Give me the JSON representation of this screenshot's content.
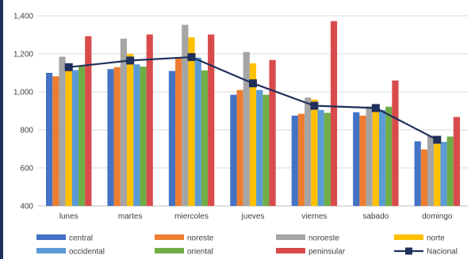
{
  "chart_data": {
    "type": "bar",
    "title": "",
    "xlabel": "",
    "ylabel": "",
    "ylim": [
      400,
      1400
    ],
    "yticks": [
      400,
      600,
      800,
      "1,000",
      "1,200",
      "1,400"
    ],
    "ytick_values": [
      400,
      600,
      800,
      1000,
      1200,
      1400
    ],
    "grid": true,
    "legend_position": "bottom",
    "categories": [
      "lunes",
      "martes",
      "miercoles",
      "jueves",
      "viernes",
      "sabado",
      "domingo"
    ],
    "series": [
      {
        "name": "central",
        "type": "bar",
        "color": "#4472c4",
        "values": [
          1100,
          1120,
          1110,
          985,
          875,
          893,
          740
        ]
      },
      {
        "name": "noreste",
        "type": "bar",
        "color": "#ed7d31",
        "values": [
          1082,
          1130,
          1180,
          1010,
          885,
          875,
          697
        ]
      },
      {
        "name": "noroeste",
        "type": "bar",
        "color": "#a5a5a5",
        "values": [
          1185,
          1280,
          1353,
          1210,
          970,
          923,
          770
        ]
      },
      {
        "name": "norte",
        "type": "bar",
        "color": "#ffc000",
        "values": [
          1145,
          1200,
          1287,
          1150,
          960,
          915,
          735
        ]
      },
      {
        "name": "occidental",
        "type": "bar",
        "color": "#5b9bd5",
        "values": [
          1115,
          1145,
          1180,
          1010,
          905,
          905,
          737
        ]
      },
      {
        "name": "oriental",
        "type": "bar",
        "color": "#70ad47",
        "values": [
          1135,
          1133,
          1113,
          985,
          890,
          922,
          765
        ]
      },
      {
        "name": "peninsular",
        "type": "bar",
        "color": "#d94b4b",
        "values": [
          1293,
          1302,
          1302,
          1168,
          1372,
          1060,
          868
        ]
      },
      {
        "name": "Nacional",
        "type": "line",
        "color": "#1f2f5c",
        "values": [
          1130,
          1165,
          1183,
          1045,
          927,
          915,
          748
        ]
      }
    ]
  }
}
